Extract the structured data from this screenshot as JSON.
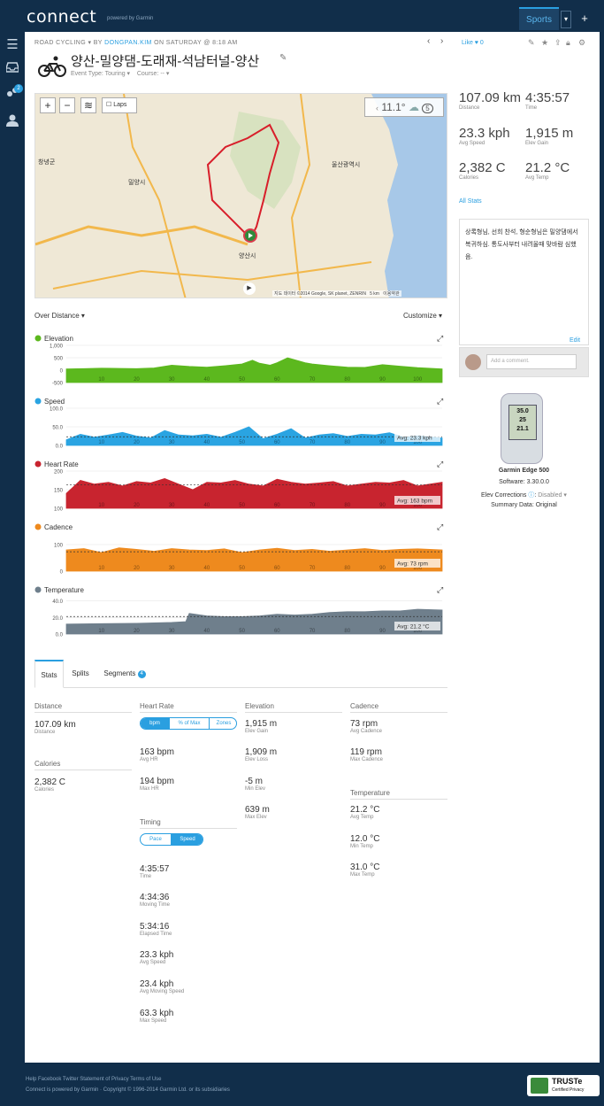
{
  "header": {
    "logo": "connect",
    "logo_sub": "powered by Garmin",
    "sports_tab": "Sports",
    "dropdown": "▾",
    "plus": "+"
  },
  "sidebar": {
    "badge": "2"
  },
  "activity": {
    "crumb_type": "ROAD CYCLING",
    "crumb_by": "BY",
    "crumb_user": "DONGPAN.KIM",
    "crumb_when": "ON SATURDAY @ 8:18 AM",
    "title": "양산-밀양댐-도래재-석남터널-양산",
    "event_type": "Event Type: Touring ▾",
    "course": "Course: -- ▾",
    "like": "Like",
    "like_count": "0"
  },
  "map": {
    "laps": "Laps",
    "temp": "11.1°",
    "wind": "5",
    "copyright": "지도 데이터 ©2014 Google, SK planet, ZENRIN",
    "scale": "5 km",
    "terms": "이용약관",
    "labels": {
      "ulsan": "울산광역시",
      "miryang": "밀양시",
      "yangsan": "양산시",
      "changnyeong": "창녕군"
    }
  },
  "summary": {
    "distance": "107.09 km",
    "distance_lbl": "Distance",
    "time": "4:35:57",
    "time_lbl": "Time",
    "avg_speed": "23.3 kph",
    "avg_speed_lbl": "Avg Speed",
    "elev_gain": "1,915 m",
    "elev_gain_lbl": "Elev Gain",
    "calories": "2,382 C",
    "calories_lbl": "Calories",
    "avg_temp": "21.2 °C",
    "avg_temp_lbl": "Avg Temp",
    "all_stats": "All Stats"
  },
  "notes": {
    "text": "상록형님, 선희 찬석, 형순형님은 밀양댐에서 복귀하심. 통도사부터 내려올때 맞바람 심했음.",
    "edit": "Edit",
    "comment_placeholder": "Add a comment."
  },
  "device": {
    "name": "Garmin Edge 500",
    "software": "Software: 3.30.0.0",
    "elev_corr_label": "Elev Corrections",
    "elev_corr_value": "Disabled ▾",
    "summary_data": "Summary Data: Original",
    "screen": [
      "35.0",
      "25",
      "21.1"
    ]
  },
  "charts_header": {
    "over_distance": "Over Distance ▾",
    "customize": "Customize ▾"
  },
  "chart_data": [
    {
      "type": "area",
      "title": "Elevation",
      "color": "#5cb81e",
      "yticks": [
        "1,000",
        "500",
        "0",
        "-500"
      ],
      "ylim": [
        -500,
        1000
      ],
      "xticks": [
        "10",
        "20",
        "30",
        "40",
        "50",
        "60",
        "70",
        "80",
        "90",
        "100"
      ],
      "x": [
        0,
        5,
        10,
        15,
        20,
        25,
        30,
        35,
        40,
        45,
        50,
        53,
        55,
        58,
        60,
        63,
        65,
        68,
        70,
        75,
        80,
        85,
        90,
        95,
        100,
        107
      ],
      "y": [
        50,
        60,
        80,
        70,
        60,
        90,
        200,
        150,
        120,
        180,
        250,
        400,
        280,
        200,
        300,
        500,
        420,
        300,
        250,
        180,
        120,
        110,
        220,
        160,
        100,
        50
      ]
    },
    {
      "type": "area",
      "title": "Speed",
      "color": "#2aa4e2",
      "yticks": [
        "100.0",
        "50.0",
        "0.0"
      ],
      "ylim": [
        0,
        100
      ],
      "xticks": [
        "10",
        "20",
        "30",
        "40",
        "50",
        "60",
        "70",
        "80",
        "90",
        "100"
      ],
      "avg": 23.3,
      "avg_label": "Avg: 23.3 kph",
      "x": [
        0,
        4,
        8,
        12,
        16,
        20,
        24,
        28,
        32,
        36,
        40,
        44,
        48,
        52,
        56,
        60,
        64,
        68,
        72,
        76,
        80,
        84,
        88,
        92,
        96,
        100,
        107
      ],
      "y": [
        15,
        30,
        22,
        28,
        35,
        25,
        20,
        40,
        28,
        26,
        30,
        22,
        35,
        50,
        18,
        30,
        45,
        20,
        28,
        32,
        24,
        30,
        28,
        34,
        22,
        26,
        20
      ]
    },
    {
      "type": "area",
      "title": "Heart Rate",
      "color": "#c8242f",
      "yticks": [
        "200",
        "150",
        "100"
      ],
      "ylim": [
        100,
        200
      ],
      "xticks": [
        "10",
        "20",
        "30",
        "40",
        "50",
        "60",
        "70",
        "80",
        "90",
        "100"
      ],
      "avg": 163,
      "avg_label": "Avg: 163 bpm",
      "x": [
        0,
        4,
        8,
        12,
        16,
        20,
        24,
        28,
        32,
        36,
        40,
        44,
        48,
        52,
        56,
        60,
        64,
        68,
        72,
        76,
        80,
        84,
        88,
        92,
        96,
        100,
        107
      ],
      "y": [
        140,
        175,
        165,
        170,
        160,
        172,
        168,
        180,
        165,
        150,
        170,
        168,
        175,
        165,
        160,
        178,
        170,
        165,
        168,
        172,
        160,
        165,
        170,
        168,
        175,
        160,
        170
      ]
    },
    {
      "type": "area",
      "title": "Cadence",
      "color": "#ee8a1e",
      "yticks": [
        "100",
        "0"
      ],
      "ylim": [
        0,
        140
      ],
      "xticks": [
        "10",
        "20",
        "30",
        "40",
        "50",
        "60",
        "70",
        "80",
        "90",
        "100"
      ],
      "avg": 73,
      "avg_label": "Avg: 73 rpm",
      "x": [
        0,
        5,
        10,
        15,
        20,
        25,
        30,
        35,
        40,
        45,
        50,
        55,
        60,
        65,
        70,
        75,
        80,
        85,
        90,
        95,
        100,
        107
      ],
      "y": [
        80,
        85,
        70,
        88,
        82,
        75,
        85,
        80,
        78,
        84,
        70,
        80,
        86,
        78,
        82,
        75,
        80,
        85,
        78,
        82,
        84,
        80
      ]
    },
    {
      "type": "area",
      "title": "Temperature",
      "color": "#6f7f8c",
      "yticks": [
        "40.0",
        "20.0",
        "0.0"
      ],
      "ylim": [
        0,
        45
      ],
      "xticks": [
        "10",
        "20",
        "30",
        "40",
        "50",
        "60",
        "70",
        "80",
        "90",
        "100"
      ],
      "avg": 21.2,
      "avg_label": "Avg: 21.2 °C",
      "x": [
        0,
        10,
        20,
        30,
        34,
        35,
        40,
        45,
        50,
        55,
        60,
        65,
        70,
        75,
        80,
        85,
        90,
        95,
        100,
        107
      ],
      "y": [
        12,
        12.5,
        13,
        14,
        15,
        25,
        22,
        21,
        21,
        22,
        24,
        23,
        24,
        26,
        27,
        27,
        28,
        28,
        30,
        29
      ]
    }
  ],
  "tabs": {
    "stats": "Stats",
    "splits": "Splits",
    "segments": "Segments",
    "segments_count": "4"
  },
  "stats": {
    "distance_h": "Distance",
    "distance_v": "107.09 km",
    "distance_l": "Distance",
    "calories_h": "Calories",
    "calories_v": "2,382 C",
    "calories_l": "Calories",
    "hr_h": "Heart Rate",
    "hr_seg": [
      "bpm",
      "% of Max",
      "Zones"
    ],
    "avg_hr_v": "163 bpm",
    "avg_hr_l": "Avg HR",
    "max_hr_v": "194 bpm",
    "max_hr_l": "Max HR",
    "timing_h": "Timing",
    "timing_seg": [
      "Pace",
      "Speed"
    ],
    "time_v": "4:35:57",
    "time_l": "Time",
    "moving_v": "4:34:36",
    "moving_l": "Moving Time",
    "elapsed_v": "5:34:16",
    "elapsed_l": "Elapsed Time",
    "avgspd_v": "23.3 kph",
    "avgspd_l": "Avg Speed",
    "avgmov_v": "23.4 kph",
    "avgmov_l": "Avg Moving Speed",
    "maxspd_v": "63.3 kph",
    "maxspd_l": "Max Speed",
    "elev_h": "Elevation",
    "gain_v": "1,915 m",
    "gain_l": "Elev Gain",
    "loss_v": "1,909 m",
    "loss_l": "Elev Loss",
    "minel_v": "-5 m",
    "minel_l": "Min Elev",
    "maxel_v": "639 m",
    "maxel_l": "Max Elev",
    "cad_h": "Cadence",
    "avgcad_v": "73 rpm",
    "avgcad_l": "Avg Cadence",
    "maxcad_v": "119 rpm",
    "maxcad_l": "Max Cadence",
    "temp_h": "Temperature",
    "avgt_v": "21.2 °C",
    "avgt_l": "Avg Temp",
    "mint_v": "12.0 °C",
    "mint_l": "Min Temp",
    "maxt_v": "31.0 °C",
    "maxt_l": "Max Temp"
  },
  "footer": {
    "links": "Help Facebook Twitter Statement of Privacy Terms of Use",
    "copyright": "Connect is powered by Garmin · Copyright © 1996-2014 Garmin Ltd. or its subsidiaries",
    "truste": "TRUSTe",
    "truste_sub": "Certified Privacy"
  }
}
